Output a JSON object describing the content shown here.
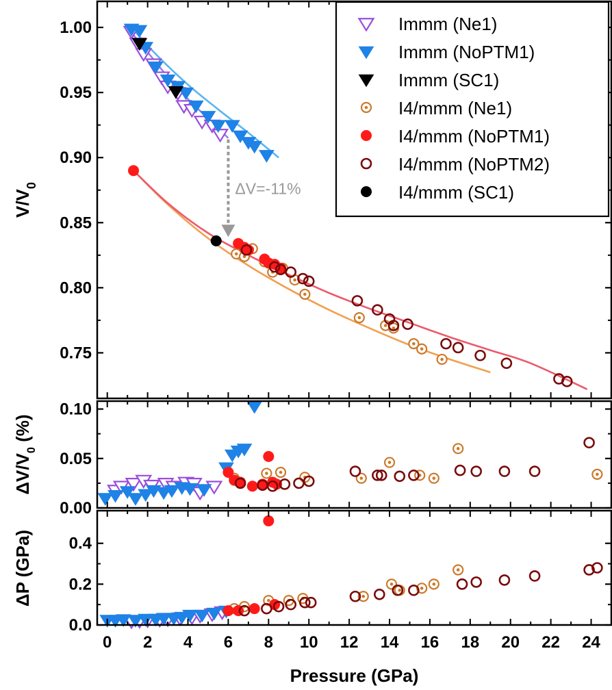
{
  "chart_data": {
    "type": "scatter",
    "xlabel": "Pressure (GPa)",
    "xlim": [
      -0.5,
      25
    ],
    "xticks": [
      "0",
      "2",
      "4",
      "6",
      "8",
      "10",
      "12",
      "14",
      "16",
      "18",
      "20",
      "22",
      "24"
    ],
    "colors": {
      "immm_ne1": "#9b4ddb",
      "immm_noptm1": "#1e82e6",
      "immm_sc1": "#000000",
      "i4_ne1": "#cc7a2b",
      "i4_noptm1": "#ff1a1a",
      "i4_noptm2": "#7a0a0a",
      "i4_sc1": "#000000",
      "fit_immm_ne1": "#9b80e8",
      "fit_immm_noptm1": "#5ab4f0",
      "fit_i4_ne1": "#f0a050",
      "fit_i4_noptm": "#ec5a6e",
      "annotation": "#999999"
    },
    "legend": {
      "position": "top-right",
      "entries": [
        {
          "label": "Immm (Ne1)",
          "marker": "triangle-down-open",
          "color": "#9b4ddb"
        },
        {
          "label": "Immm (NoPTM1)",
          "marker": "triangle-down-filled",
          "color": "#1e82e6"
        },
        {
          "label": "Immm (SC1)",
          "marker": "triangle-down-filled",
          "color": "#000000"
        },
        {
          "label": "I4/mmm (Ne1)",
          "marker": "circle-dot",
          "color": "#cc7a2b"
        },
        {
          "label": "I4/mmm (NoPTM1)",
          "marker": "circle-filled",
          "color": "#ff1a1a"
        },
        {
          "label": "I4/mmm (NoPTM2)",
          "marker": "circle-open",
          "color": "#7a0a0a"
        },
        {
          "label": "I4/mmm (SC1)",
          "marker": "circle-filled",
          "color": "#000000"
        }
      ]
    },
    "panels": [
      {
        "id": "vv0",
        "ylabel": "V/V0",
        "ylim": [
          0.715,
          1.02
        ],
        "yticks": [
          "1.00",
          "0.95",
          "0.90",
          "0.85",
          "0.80",
          "0.75"
        ],
        "annotation": {
          "text": "ΔV=-11%",
          "x": 6.0,
          "y_from": 0.916,
          "y_to": 0.84
        },
        "fits": [
          {
            "color": "#9b80e8",
            "x": [
              1.2,
              2.0,
              3.0,
              4.0,
              5.0,
              6.0
            ],
            "y": [
              0.996,
              0.981,
              0.962,
              0.945,
              0.93,
              0.915
            ]
          },
          {
            "color": "#5ab4f0",
            "x": [
              1.3,
              2.5,
              4.0,
              5.5,
              7.0,
              8.5
            ],
            "y": [
              0.998,
              0.978,
              0.956,
              0.937,
              0.919,
              0.9
            ]
          },
          {
            "color": "#f0a050",
            "x": [
              1.3,
              3.0,
              5.0,
              7.0,
              9.0,
              11.0,
              13.0,
              15.0,
              17.0,
              19.0
            ],
            "y": [
              0.89,
              0.864,
              0.838,
              0.817,
              0.799,
              0.783,
              0.769,
              0.756,
              0.745,
              0.735
            ]
          },
          {
            "color": "#ec5a6e",
            "x": [
              1.3,
              3.0,
              5.0,
              7.0,
              9.0,
              11.0,
              13.0,
              15.0,
              17.0,
              19.0,
              21.0,
              23.8
            ],
            "y": [
              0.89,
              0.865,
              0.842,
              0.825,
              0.81,
              0.796,
              0.784,
              0.773,
              0.762,
              0.752,
              0.742,
              0.722
            ]
          }
        ],
        "series": [
          {
            "name": "Immm (Ne1)",
            "x": [
              1.2,
              1.5,
              1.8,
              2.3,
              2.7,
              3.0,
              3.5,
              3.8,
              4.2,
              4.7,
              5.2,
              5.6
            ],
            "y": [
              0.997,
              0.988,
              0.98,
              0.972,
              0.962,
              0.955,
              0.95,
              0.94,
              0.937,
              0.928,
              0.925,
              0.918
            ]
          },
          {
            "name": "Immm (NoPTM1)",
            "x": [
              1.2,
              1.6,
              1.9,
              2.4,
              3.0,
              3.5,
              3.9,
              4.4,
              5.0,
              5.5,
              6.2,
              6.6,
              7.0,
              7.3,
              7.9
            ],
            "y": [
              0.999,
              0.998,
              0.985,
              0.97,
              0.96,
              0.955,
              0.95,
              0.94,
              0.932,
              0.925,
              0.925,
              0.917,
              0.912,
              0.909,
              0.902
            ]
          },
          {
            "name": "Immm (SC1)",
            "x": [
              1.6,
              3.4
            ],
            "y": [
              0.988,
              0.951
            ]
          },
          {
            "name": "I4/mmm (Ne1)",
            "x": [
              6.4,
              6.8,
              7.2,
              7.8,
              8.2,
              8.7,
              9.3,
              9.8,
              12.5,
              13.8,
              14.2,
              15.2,
              15.6,
              16.6
            ],
            "y": [
              0.826,
              0.824,
              0.83,
              0.82,
              0.812,
              0.815,
              0.806,
              0.795,
              0.777,
              0.771,
              0.769,
              0.757,
              0.753,
              0.745
            ]
          },
          {
            "name": "I4/mmm (NoPTM1)",
            "x": [
              1.3,
              6.5,
              6.8,
              7.0,
              7.8,
              8.0,
              8.3,
              8.6
            ],
            "y": [
              0.89,
              0.834,
              0.831,
              0.829,
              0.822,
              0.819,
              0.818,
              0.815
            ]
          },
          {
            "name": "I4/mmm (NoPTM2)",
            "x": [
              6.9,
              8.3,
              8.6,
              9.1,
              9.7,
              10.0,
              12.4,
              13.4,
              14.0,
              14.2,
              14.9,
              16.8,
              17.4,
              18.5,
              19.8,
              22.4,
              22.8
            ],
            "y": [
              0.829,
              0.816,
              0.814,
              0.812,
              0.807,
              0.805,
              0.79,
              0.783,
              0.776,
              0.771,
              0.772,
              0.757,
              0.754,
              0.748,
              0.742,
              0.73,
              0.728
            ]
          },
          {
            "name": "I4/mmm (SC1)",
            "x": [
              5.4
            ],
            "y": [
              0.836
            ]
          }
        ]
      },
      {
        "id": "dvv0",
        "ylabel": "ΔV/V0 (%)",
        "ylim": [
          0,
          0.108
        ],
        "yticks": [
          "0.10",
          "0.05",
          "0.00"
        ],
        "series": [
          {
            "name": "Immm (Ne1)",
            "x": [
              0.4,
              0.7,
              1.3,
              1.8,
              2.2,
              2.9,
              3.3,
              3.9,
              4.3,
              4.6,
              5.3
            ],
            "y": [
              0.018,
              0.022,
              0.025,
              0.028,
              0.023,
              0.025,
              0.022,
              0.026,
              0.025,
              0.016,
              0.022
            ]
          },
          {
            "name": "Immm (NoPTM1)",
            "x": [
              -0.1,
              0.4,
              1.0,
              1.4,
              1.9,
              2.3,
              2.8,
              3.2,
              3.7,
              4.1,
              4.8,
              5.9,
              6.2,
              6.5,
              6.8,
              7.3
            ],
            "y": [
              0.01,
              0.013,
              0.017,
              0.01,
              0.014,
              0.018,
              0.016,
              0.018,
              0.021,
              0.02,
              0.019,
              0.041,
              0.054,
              0.058,
              0.06,
              0.103
            ]
          },
          {
            "name": "I4/mmm (Ne1)",
            "x": [
              6.3,
              7.9,
              8.6,
              9.8,
              12.6,
              14.0,
              15.5,
              16.2,
              17.4,
              24.3
            ],
            "y": [
              0.03,
              0.035,
              0.036,
              0.031,
              0.03,
              0.046,
              0.033,
              0.03,
              0.06,
              0.034
            ]
          },
          {
            "name": "I4/mmm (NoPTM1)",
            "x": [
              6.0,
              6.3,
              6.6,
              7.2,
              7.7,
              8.0,
              8.2,
              8.4
            ],
            "y": [
              0.036,
              0.028,
              0.026,
              0.022,
              0.024,
              0.052,
              0.026,
              0.024
            ]
          },
          {
            "name": "I4/mmm (NoPTM2)",
            "x": [
              6.6,
              7.7,
              8.2,
              8.8,
              9.5,
              10.0,
              12.3,
              13.4,
              13.6,
              14.5,
              15.2,
              17.5,
              18.3,
              19.7,
              21.2,
              23.9
            ],
            "y": [
              0.025,
              0.023,
              0.022,
              0.024,
              0.025,
              0.027,
              0.037,
              0.033,
              0.033,
              0.032,
              0.033,
              0.038,
              0.037,
              0.037,
              0.037,
              0.066
            ]
          }
        ]
      },
      {
        "id": "dp",
        "ylabel": "ΔP (GPa)",
        "ylim": [
          0,
          0.56
        ],
        "yticks": [
          "0.4",
          "0.2",
          "0.0"
        ],
        "series": [
          {
            "name": "Immm (Ne1)",
            "x": [
              1.2,
              1.6,
              2.0,
              2.6,
              3.0,
              3.6,
              4.2,
              4.6,
              5.2,
              5.7
            ],
            "y": [
              0.02,
              0.022,
              0.025,
              0.028,
              0.03,
              0.035,
              0.04,
              0.048,
              0.055,
              0.065
            ]
          },
          {
            "name": "Immm (NoPTM1)",
            "x": [
              0.0,
              0.4,
              0.8,
              1.4,
              1.9,
              2.4,
              2.8,
              3.3,
              3.7,
              4.1,
              4.7,
              5.3,
              5.9
            ],
            "y": [
              0.025,
              0.025,
              0.028,
              0.025,
              0.03,
              0.03,
              0.035,
              0.035,
              0.04,
              0.05,
              0.05,
              0.06,
              0.07
            ]
          },
          {
            "name": "I4/mmm (Ne1)",
            "x": [
              6.3,
              6.8,
              8.0,
              9.0,
              9.7,
              12.7,
              14.1,
              14.5,
              15.6,
              16.2,
              17.4
            ],
            "y": [
              0.08,
              0.09,
              0.12,
              0.12,
              0.13,
              0.14,
              0.2,
              0.17,
              0.18,
              0.2,
              0.27
            ]
          },
          {
            "name": "I4/mmm (NoPTM1)",
            "x": [
              6.0,
              6.5,
              7.3,
              8.0,
              8.3
            ],
            "y": [
              0.07,
              0.07,
              0.08,
              0.51,
              0.1
            ]
          },
          {
            "name": "I4/mmm (NoPTM2)",
            "x": [
              6.8,
              7.9,
              8.5,
              9.1,
              9.8,
              10.1,
              12.3,
              13.5,
              14.4,
              15.2,
              17.6,
              18.3,
              19.7,
              21.2,
              23.9,
              24.3
            ],
            "y": [
              0.07,
              0.08,
              0.09,
              0.1,
              0.11,
              0.11,
              0.14,
              0.15,
              0.17,
              0.17,
              0.2,
              0.21,
              0.22,
              0.24,
              0.27,
              0.28
            ]
          }
        ]
      }
    ]
  }
}
